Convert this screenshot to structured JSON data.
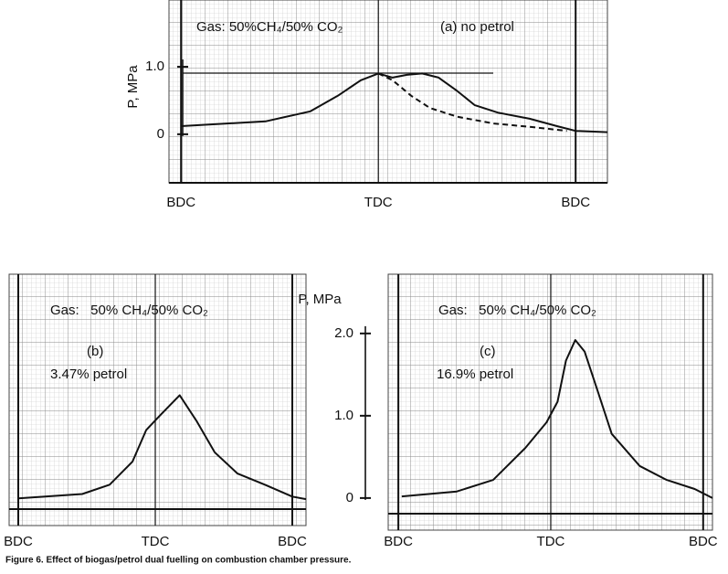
{
  "caption": "Figure 6. Effect of biogas/petrol dual fuelling on combustion chamber pressure.",
  "chart_data": [
    {
      "type": "line",
      "ylabel": "P, MPa",
      "annotations": [
        "Gas: 50%CH₄/50% CO₂",
        "(a) no petrol"
      ],
      "xlim": [
        -191,
        209
      ],
      "ylim": [
        -0.72,
        1.99
      ],
      "xticks": [
        {
          "value": -180,
          "label": "BDC"
        },
        {
          "value": 0,
          "label": "TDC"
        },
        {
          "value": 180,
          "label": "BDC"
        }
      ],
      "yticks": [
        0,
        {
          "value": 1,
          "label": "1.0"
        }
      ],
      "series": [
        {
          "color": "#111111",
          "dash": false,
          "x": [
            -180,
            -103,
            -62,
            -37,
            -16,
            0,
            13,
            26,
            40,
            55,
            72,
            88,
            109,
            138,
            163,
            180,
            209
          ],
          "values": [
            0.12,
            0.19,
            0.34,
            0.57,
            0.8,
            0.9,
            0.84,
            0.88,
            0.9,
            0.84,
            0.64,
            0.43,
            0.32,
            0.23,
            0.12,
            0.05,
            0.03
          ]
        },
        {
          "color": "#111111",
          "dash": true,
          "x": [
            0,
            13,
            30,
            47,
            72,
            105,
            138,
            172
          ],
          "values": [
            0.9,
            0.8,
            0.57,
            0.39,
            0.26,
            0.16,
            0.11,
            0.05
          ]
        }
      ]
    },
    {
      "type": "line",
      "annotations": [
        "Gas:   50% CH₄/50% CO₂",
        "(b)",
        "3.47% petrol"
      ],
      "xlim": [
        -192,
        198
      ],
      "ylim": [
        -0.2,
        2.75
      ],
      "xticks": [
        {
          "value": -180,
          "label": "BDC"
        },
        {
          "value": 0,
          "label": "TDC"
        },
        {
          "value": 180,
          "label": "BDC"
        }
      ],
      "series": [
        {
          "color": "#111111",
          "dash": false,
          "x": [
            -180,
            -96,
            -60,
            -30,
            -12,
            6,
            32,
            54,
            78,
            108,
            144,
            180,
            198
          ],
          "values": [
            0.12,
            0.17,
            0.28,
            0.55,
            0.92,
            1.09,
            1.33,
            1.03,
            0.66,
            0.41,
            0.28,
            0.14,
            0.11
          ]
        }
      ]
    },
    {
      "type": "line",
      "ylabel": "P, MPa",
      "annotations": [
        "Gas:   50% CH₄/50% CO₂",
        "(c)",
        "16.9% petrol"
      ],
      "xlim": [
        -192,
        191
      ],
      "ylim": [
        -0.39,
        2.72
      ],
      "xticks": [
        {
          "value": -180,
          "label": "BDC"
        },
        {
          "value": 0,
          "label": "TDC"
        },
        {
          "value": 180,
          "label": "BDC"
        }
      ],
      "yticks": [
        0,
        {
          "value": 1,
          "label": "1.0"
        },
        {
          "value": 2,
          "label": "2.0"
        }
      ],
      "series": [
        {
          "color": "#111111",
          "dash": false,
          "x": [
            -176,
            -111,
            -68,
            -30,
            -5,
            8,
            18,
            29,
            40,
            56,
            72,
            105,
            137,
            170,
            191
          ],
          "values": [
            0.02,
            0.08,
            0.22,
            0.61,
            0.92,
            1.17,
            1.67,
            1.92,
            1.78,
            1.28,
            0.78,
            0.39,
            0.22,
            0.11,
            0
          ]
        }
      ]
    }
  ]
}
